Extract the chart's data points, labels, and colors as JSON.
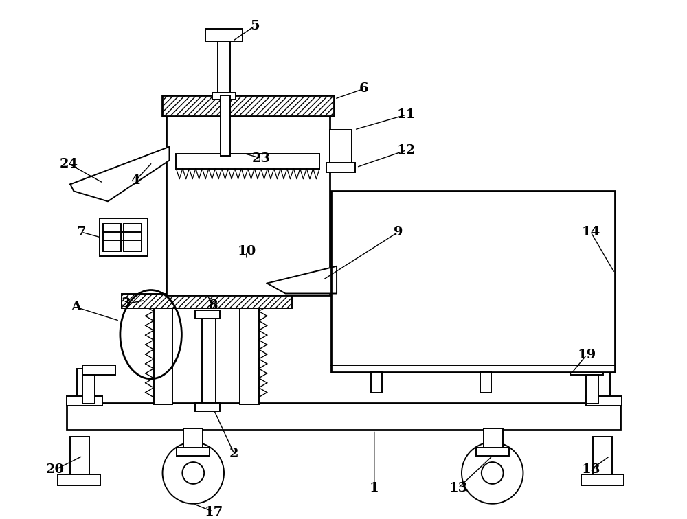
{
  "bg_color": "#ffffff",
  "fig_width": 10.0,
  "fig_height": 7.56,
  "lw": 1.4,
  "lw2": 2.0
}
